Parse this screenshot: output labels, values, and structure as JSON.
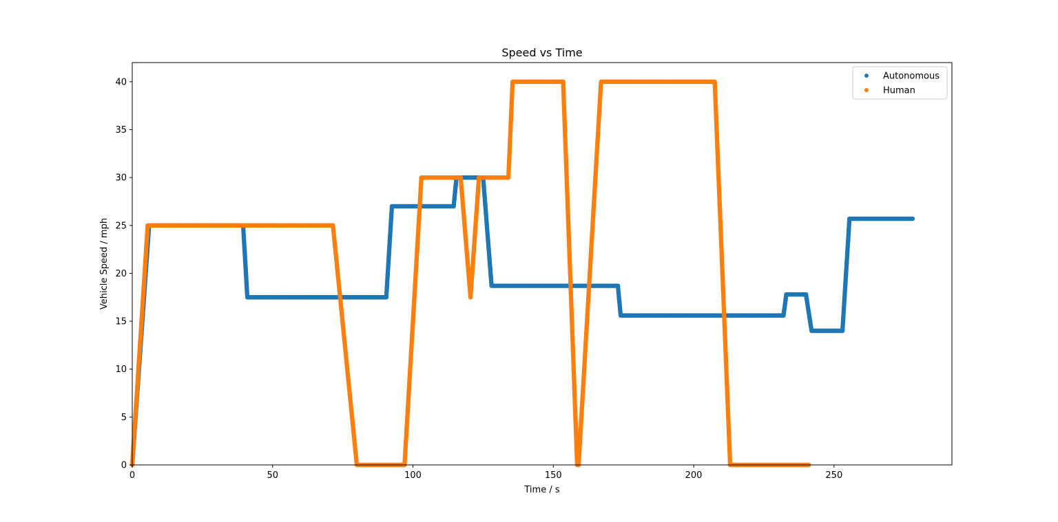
{
  "chart_data": {
    "type": "scatter",
    "title": "Speed vs Time",
    "xlabel": "Time / s",
    "ylabel": "Vehicle Speed / mph",
    "xlim": [
      0,
      292
    ],
    "ylim": [
      0,
      42
    ],
    "xticks": [
      0,
      50,
      100,
      150,
      200,
      250
    ],
    "yticks": [
      0,
      5,
      10,
      15,
      20,
      25,
      30,
      35,
      40
    ],
    "grid": false,
    "legend_position": "top-right",
    "series": [
      {
        "name": "Autonomous",
        "color": "#1f77b4",
        "keypoints": [
          [
            0,
            0
          ],
          [
            6,
            25
          ],
          [
            39.5,
            25
          ],
          [
            41,
            17.5
          ],
          [
            90.5,
            17.5
          ],
          [
            92.5,
            27
          ],
          [
            114.5,
            27
          ],
          [
            115.5,
            30
          ],
          [
            125,
            30
          ],
          [
            128,
            18.7
          ],
          [
            173,
            18.7
          ],
          [
            174,
            15.6
          ],
          [
            232,
            15.6
          ],
          [
            233,
            17.8
          ],
          [
            240,
            17.8
          ],
          [
            242,
            14
          ],
          [
            253,
            14
          ],
          [
            255.5,
            25.7
          ],
          [
            278,
            25.7
          ]
        ]
      },
      {
        "name": "Human",
        "color": "#ff7f0e",
        "keypoints": [
          [
            0,
            0
          ],
          [
            5.5,
            25
          ],
          [
            71.5,
            25
          ],
          [
            80,
            0
          ],
          [
            97,
            0
          ],
          [
            103,
            30
          ],
          [
            117,
            30
          ],
          [
            120.5,
            17.5
          ],
          [
            123.5,
            30
          ],
          [
            134,
            30
          ],
          [
            135.5,
            40
          ],
          [
            153.5,
            40
          ],
          [
            158.5,
            0
          ],
          [
            159,
            0
          ],
          [
            167,
            40
          ],
          [
            207.5,
            40
          ],
          [
            213,
            0
          ],
          [
            241,
            0
          ]
        ]
      }
    ]
  }
}
